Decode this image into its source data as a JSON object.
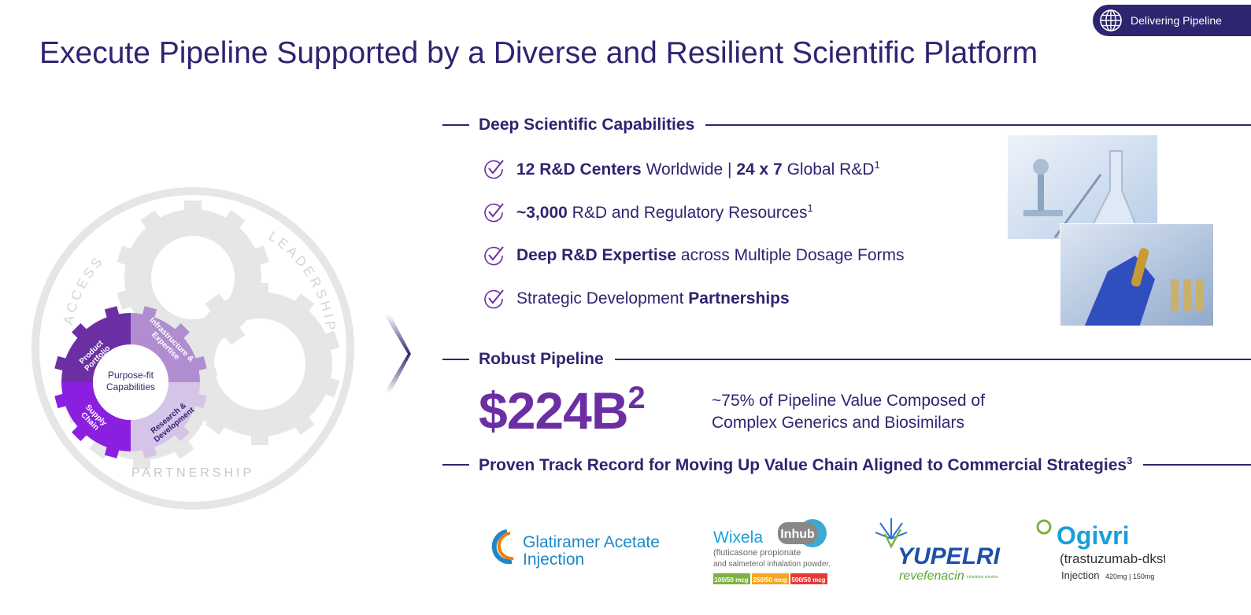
{
  "badge": {
    "label": "Delivering Pipeline",
    "icon": "globe-icon"
  },
  "page_title": "Execute Pipeline Supported by a Diverse and Resilient Scientific Platform",
  "gear_diagram": {
    "outer_labels": {
      "left": "ACCESS",
      "right": "LEADERSHIP",
      "bottom": "PARTNERSHIP"
    },
    "center": "Purpose-fit Capabilities",
    "segments": [
      {
        "label": "Product Portfolio",
        "color": "#6b2fa3"
      },
      {
        "label": "Infrastructure & Expertise",
        "color": "#b08dd0"
      },
      {
        "label": "Research & Development",
        "color": "#d6c4e8"
      },
      {
        "label": "Supply Chain",
        "color": "#8a1fe0"
      }
    ]
  },
  "sections": {
    "capabilities": "Deep Scientific Capabilities",
    "pipeline": "Robust Pipeline",
    "track_record": "Proven Track Record for Moving Up Value Chain Aligned to Commercial Strategies",
    "track_record_sup": "3"
  },
  "capabilities": [
    {
      "b1": "12 R&D Centers",
      "t1": " Worldwide | ",
      "b2": "24 x 7",
      "t2": " Global R&D",
      "sup": "1"
    },
    {
      "b1": "~3,000",
      "t1": " R&D and Regulatory Resources",
      "b2": "",
      "t2": "",
      "sup": "1"
    },
    {
      "b1": "Deep R&D Expertise",
      "t1": " across Multiple Dosage Forms",
      "b2": "",
      "t2": "",
      "sup": ""
    },
    {
      "b1": "",
      "t1": "Strategic Development ",
      "b2": "Partnerships",
      "t2": "",
      "sup": ""
    }
  ],
  "pipeline": {
    "value": "$224B",
    "value_sup": "2",
    "note_line1": "~75% of Pipeline Value Composed of",
    "note_line2": "Complex Generics and Biosimilars"
  },
  "products": {
    "glatiramer": {
      "line1": "Glatiramer Acetate",
      "line2": "Injection"
    },
    "wixela": {
      "name": "Wixela",
      "device": "Inhub",
      "desc1": "(fluticasone propionate",
      "desc2": "and salmeterol inhalation powder, USP)",
      "doses": [
        "100/50 mcg",
        "250/50 mcg",
        "500/50 mcg"
      ],
      "dose_colors": [
        "#7cb342",
        "#f5a623",
        "#e53935"
      ]
    },
    "yupelri": {
      "name": "YUPELRI",
      "generic": "revefenacin",
      "form": "inhalation solution"
    },
    "ogivri": {
      "name": "Ogivri",
      "generic": "(trastuzumab-dkst)",
      "form": "Injection",
      "strengths": "420mg | 150mg"
    }
  },
  "colors": {
    "navy": "#2d2570",
    "purple": "#6b2fa3",
    "gear_gray": "#e6e6e6"
  }
}
